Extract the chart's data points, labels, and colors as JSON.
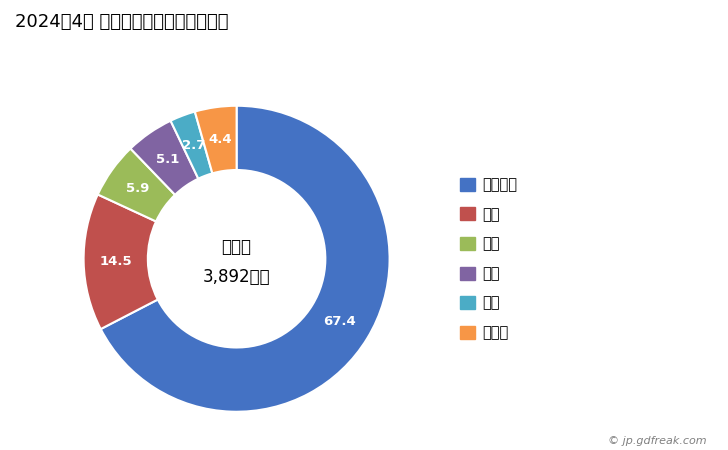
{
  "title": "2024年4月 輸出相手国のシェア（％）",
  "title_fontsize": 13,
  "center_label_line1": "総　額",
  "center_label_line2": "3,892万円",
  "labels": [
    "ベトナム",
    "米国",
    "台湾",
    "中国",
    "香港",
    "その他"
  ],
  "values": [
    67.4,
    14.5,
    5.9,
    5.1,
    2.7,
    4.4
  ],
  "colors": [
    "#4472C4",
    "#C0504D",
    "#9BBB59",
    "#8064A2",
    "#4BACC6",
    "#F79646"
  ],
  "legend_labels": [
    "ベトナム",
    "米国",
    "台湾",
    "中国",
    "香港",
    "その他"
  ],
  "watermark": "© jp.gdfreak.com",
  "background_color": "#ffffff",
  "wedge_linewidth": 1.5,
  "wedge_edgecolor": "#ffffff",
  "startangle": 90,
  "donut_width": 0.42
}
